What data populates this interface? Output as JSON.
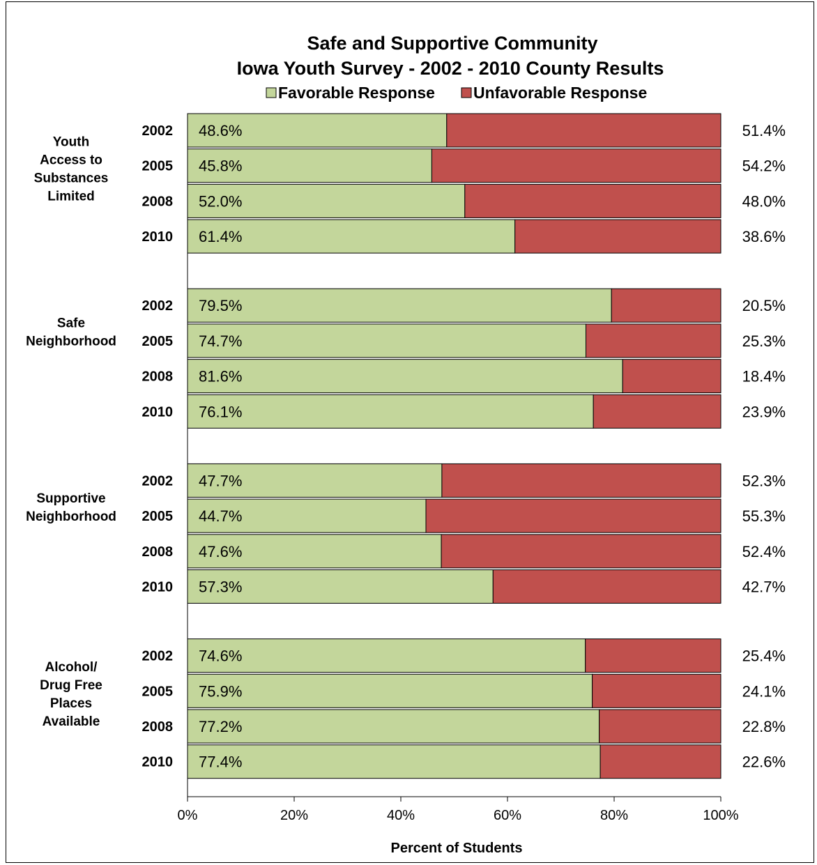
{
  "chart_data": {
    "type": "bar",
    "orientation": "horizontal",
    "stacked": true,
    "title": "Safe and Supportive Community",
    "subtitle": "Iowa Youth Survey - 2002 - 2010 County Results",
    "xlabel": "Percent of Students",
    "xlim": [
      0,
      100
    ],
    "x_ticks": [
      "0%",
      "20%",
      "40%",
      "60%",
      "80%",
      "100%"
    ],
    "legend_position": "top",
    "grid": false,
    "colors": {
      "favorable": "#c3d69b",
      "unfavorable": "#c0504d"
    },
    "series": [
      {
        "name": "Favorable Response",
        "key": "favorable"
      },
      {
        "name": "Unfavorable Response",
        "key": "unfavorable"
      }
    ],
    "groups": [
      {
        "label_lines": [
          "Youth",
          "Access to",
          "Substances",
          "Limited"
        ],
        "rows": [
          {
            "year": "2002",
            "favorable": 48.6,
            "unfavorable": 51.4,
            "fav_label": "48.6%",
            "unfav_label": "51.4%"
          },
          {
            "year": "2005",
            "favorable": 45.8,
            "unfavorable": 54.2,
            "fav_label": "45.8%",
            "unfav_label": "54.2%"
          },
          {
            "year": "2008",
            "favorable": 52.0,
            "unfavorable": 48.0,
            "fav_label": "52.0%",
            "unfav_label": "48.0%"
          },
          {
            "year": "2010",
            "favorable": 61.4,
            "unfavorable": 38.6,
            "fav_label": "61.4%",
            "unfav_label": "38.6%"
          }
        ]
      },
      {
        "label_lines": [
          "Safe",
          "Neighborhood"
        ],
        "rows": [
          {
            "year": "2002",
            "favorable": 79.5,
            "unfavorable": 20.5,
            "fav_label": "79.5%",
            "unfav_label": "20.5%"
          },
          {
            "year": "2005",
            "favorable": 74.7,
            "unfavorable": 25.3,
            "fav_label": "74.7%",
            "unfav_label": "25.3%"
          },
          {
            "year": "2008",
            "favorable": 81.6,
            "unfavorable": 18.4,
            "fav_label": "81.6%",
            "unfav_label": "18.4%"
          },
          {
            "year": "2010",
            "favorable": 76.1,
            "unfavorable": 23.9,
            "fav_label": "76.1%",
            "unfav_label": "23.9%"
          }
        ]
      },
      {
        "label_lines": [
          "Supportive",
          "Neighborhood"
        ],
        "rows": [
          {
            "year": "2002",
            "favorable": 47.7,
            "unfavorable": 52.3,
            "fav_label": "47.7%",
            "unfav_label": "52.3%"
          },
          {
            "year": "2005",
            "favorable": 44.7,
            "unfavorable": 55.3,
            "fav_label": "44.7%",
            "unfav_label": "55.3%"
          },
          {
            "year": "2008",
            "favorable": 47.6,
            "unfavorable": 52.4,
            "fav_label": "47.6%",
            "unfav_label": "52.4%"
          },
          {
            "year": "2010",
            "favorable": 57.3,
            "unfavorable": 42.7,
            "fav_label": "57.3%",
            "unfav_label": "42.7%"
          }
        ]
      },
      {
        "label_lines": [
          "Alcohol/",
          "Drug Free",
          "Places",
          "Available"
        ],
        "rows": [
          {
            "year": "2002",
            "favorable": 74.6,
            "unfavorable": 25.4,
            "fav_label": "74.6%",
            "unfav_label": "25.4%"
          },
          {
            "year": "2005",
            "favorable": 75.9,
            "unfavorable": 24.1,
            "fav_label": "75.9%",
            "unfav_label": "24.1%"
          },
          {
            "year": "2008",
            "favorable": 77.2,
            "unfavorable": 22.8,
            "fav_label": "77.2%",
            "unfav_label": "22.8%"
          },
          {
            "year": "2010",
            "favorable": 77.4,
            "unfavorable": 22.6,
            "fav_label": "77.4%",
            "unfav_label": "22.6%"
          }
        ]
      }
    ]
  }
}
